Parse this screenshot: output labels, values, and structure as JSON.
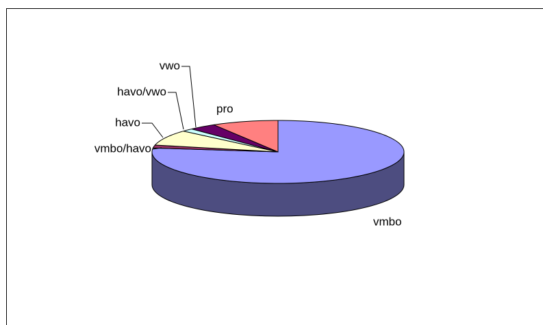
{
  "chart_data": {
    "type": "pie",
    "categories": [
      "vmbo",
      "vmbo/havo",
      "havo",
      "havo/vwo",
      "vwo",
      "pro"
    ],
    "values": [
      77,
      1.5,
      8,
      1.5,
      3.5,
      8.5
    ],
    "colors": [
      "#9999ff",
      "#993366",
      "#ffffcc",
      "#ccffff",
      "#660066",
      "#ff8080"
    ]
  }
}
